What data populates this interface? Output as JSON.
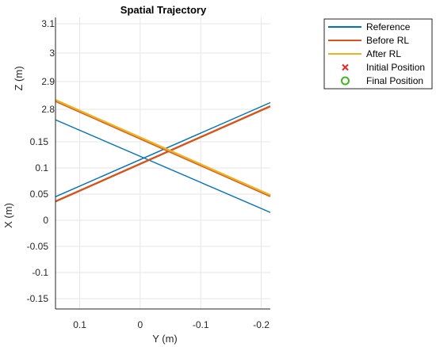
{
  "chart_data": {
    "type": "line",
    "title": "Spatial Trajectory",
    "xlabel": "Y (m)",
    "ylabel": "X (m)",
    "zlabel": "Z (m)",
    "x_ticks": [
      "0.1",
      "0",
      "-0.1",
      "-0.2"
    ],
    "y_ticks": [
      "0.15",
      "0.1",
      "0.05",
      "0",
      "-0.05",
      "-0.1",
      "-0.15"
    ],
    "z_ticks": [
      "3.1",
      "3",
      "2.9",
      "2.8"
    ],
    "xlim": [
      0.14,
      -0.215
    ],
    "x_reversed": true,
    "grid": true,
    "legend_position": "top-right",
    "legend": [
      {
        "label": "Reference",
        "color": "#0072BD",
        "marker": "line"
      },
      {
        "label": "Before RL",
        "color": "#D95319",
        "marker": "line"
      },
      {
        "label": "After RL",
        "color": "#EDB120",
        "marker": "line"
      },
      {
        "label": "Initial Position",
        "color": "#E8262A",
        "marker": "x"
      },
      {
        "label": "Final Position",
        "color": "#3DB822",
        "marker": "o"
      }
    ],
    "series": [
      {
        "name": "Reference",
        "color": "#0072BD",
        "segments": [
          {
            "x": [
              0.14,
              -0.215
            ],
            "y": [
              0.045,
              0.225
            ]
          },
          {
            "x": [
              0.14,
              -0.215
            ],
            "y": [
              0.192,
              0.015
            ]
          }
        ]
      },
      {
        "name": "Before RL",
        "color": "#D95319",
        "segments": [
          {
            "x": [
              0.14,
              -0.215
            ],
            "y": [
              0.036,
              0.218
            ]
          },
          {
            "x": [
              0.14,
              -0.215
            ],
            "y": [
              0.228,
              0.046
            ]
          }
        ]
      },
      {
        "name": "After RL",
        "color": "#EDB120",
        "segments": [
          {
            "x": [
              0.14,
              -0.215
            ],
            "y": [
              0.23,
              0.048
            ]
          }
        ]
      }
    ]
  }
}
